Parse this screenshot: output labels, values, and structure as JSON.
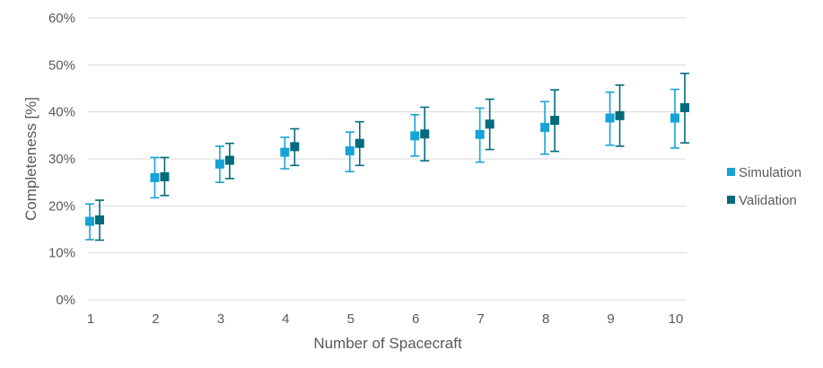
{
  "chart_data": {
    "type": "scatter",
    "title": "",
    "xlabel": "Number of Spacecraft",
    "ylabel": "Completeness [%]",
    "x": [
      1,
      2,
      3,
      4,
      5,
      6,
      7,
      8,
      9,
      10
    ],
    "xlim": [
      1,
      10
    ],
    "ylim": [
      0,
      60
    ],
    "ytick_values": [
      0,
      10,
      20,
      30,
      40,
      50,
      60
    ],
    "ytick_labels": [
      "0%",
      "10%",
      "20%",
      "30%",
      "40%",
      "50%",
      "60%"
    ],
    "xtick_labels": [
      "1",
      "2",
      "3",
      "4",
      "5",
      "6",
      "7",
      "8",
      "9",
      "10"
    ],
    "grid": true,
    "legend_position": "right",
    "series": [
      {
        "name": "Simulation",
        "color": "#16a3d6",
        "marker": "square",
        "values": [
          16.7,
          26.0,
          28.9,
          31.4,
          31.7,
          34.9,
          35.2,
          36.7,
          38.7,
          38.7
        ],
        "err_low": [
          12.8,
          21.7,
          25.0,
          27.9,
          27.3,
          30.6,
          29.3,
          31.0,
          32.9,
          32.3
        ],
        "err_high": [
          20.4,
          30.3,
          32.7,
          34.6,
          35.7,
          39.4,
          40.8,
          42.2,
          44.2,
          44.8
        ]
      },
      {
        "name": "Validation",
        "color": "#046b7c",
        "marker": "square",
        "values": [
          17.0,
          26.2,
          29.7,
          32.6,
          33.3,
          35.3,
          37.4,
          38.2,
          39.2,
          40.9
        ],
        "err_low": [
          12.7,
          22.2,
          25.8,
          28.6,
          28.6,
          29.6,
          32.0,
          31.6,
          32.7,
          33.4
        ],
        "err_high": [
          21.2,
          30.3,
          33.3,
          36.4,
          37.9,
          41.0,
          42.7,
          44.7,
          45.7,
          48.2
        ]
      }
    ]
  }
}
